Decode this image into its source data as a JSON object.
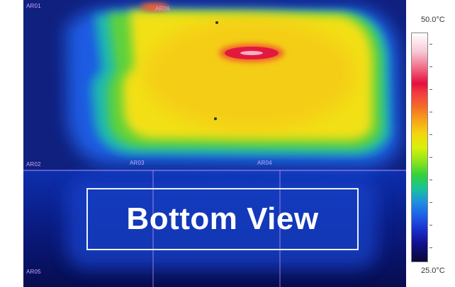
{
  "image": {
    "roi_labels": [
      "AR01",
      "AR02",
      "AR03",
      "AR04",
      "AR05",
      "AR06"
    ],
    "overlay_text": "Bottom View"
  },
  "colorbar": {
    "max_label": "50.0°C",
    "min_label": "25.0°C",
    "colors": {
      "hot": "#ffffff",
      "red": "#e3103c",
      "orange": "#f7a21b",
      "yellow": "#f5d50f",
      "green": "#35d13a",
      "blue": "#1e5ee8",
      "dark": "#0a0838"
    }
  }
}
